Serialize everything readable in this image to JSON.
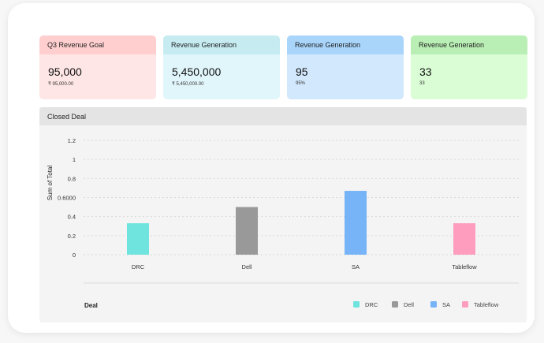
{
  "cards": [
    {
      "title": "Q3 Revenue Goal",
      "value": "95,000",
      "sub": "₹ 95,000.00",
      "head_color": "#ffcfcf",
      "body_color": "#ffe6e6"
    },
    {
      "title": "Revenue Generation",
      "value": "5,450,000",
      "sub": "₹ 5,450,000.00",
      "head_color": "#c6ecf2",
      "body_color": "#e1f6fb"
    },
    {
      "title": "Revenue Generation",
      "value": "95",
      "sub": "95%",
      "head_color": "#a9d5fb",
      "body_color": "#d2e8fc"
    },
    {
      "title": "Revenue Generation",
      "value": "33",
      "sub": "33",
      "head_color": "#b9efb4",
      "body_color": "#dafdd6"
    }
  ],
  "panel": {
    "title": "Closed Deal"
  },
  "chart_data": {
    "type": "bar",
    "categories": [
      "DRC",
      "Dell",
      "SA",
      "Tableflow"
    ],
    "values": [
      0.33,
      0.5,
      0.67,
      0.33
    ],
    "colors": [
      "#6fe3dd",
      "#999999",
      "#76b4f7",
      "#ff9dbf"
    ],
    "ylabel": "Sum of Total",
    "xlabel": "Deal",
    "ylim": [
      0,
      1.2
    ],
    "y_ticks": [
      0,
      0.2,
      0.4,
      0.6,
      0.8,
      1,
      1.2
    ],
    "y_tick_labels": [
      "0",
      "0.2",
      "0.4",
      "0.6000",
      "0.8",
      "1",
      "1.2"
    ],
    "grid": true,
    "legend": [
      {
        "name": "DRC",
        "color": "#6fe3dd"
      },
      {
        "name": "Dell",
        "color": "#999999"
      },
      {
        "name": "SA",
        "color": "#76b4f7"
      },
      {
        "name": "Tableflow",
        "color": "#ff9dbf"
      }
    ],
    "legend_position": "bottom-right"
  }
}
